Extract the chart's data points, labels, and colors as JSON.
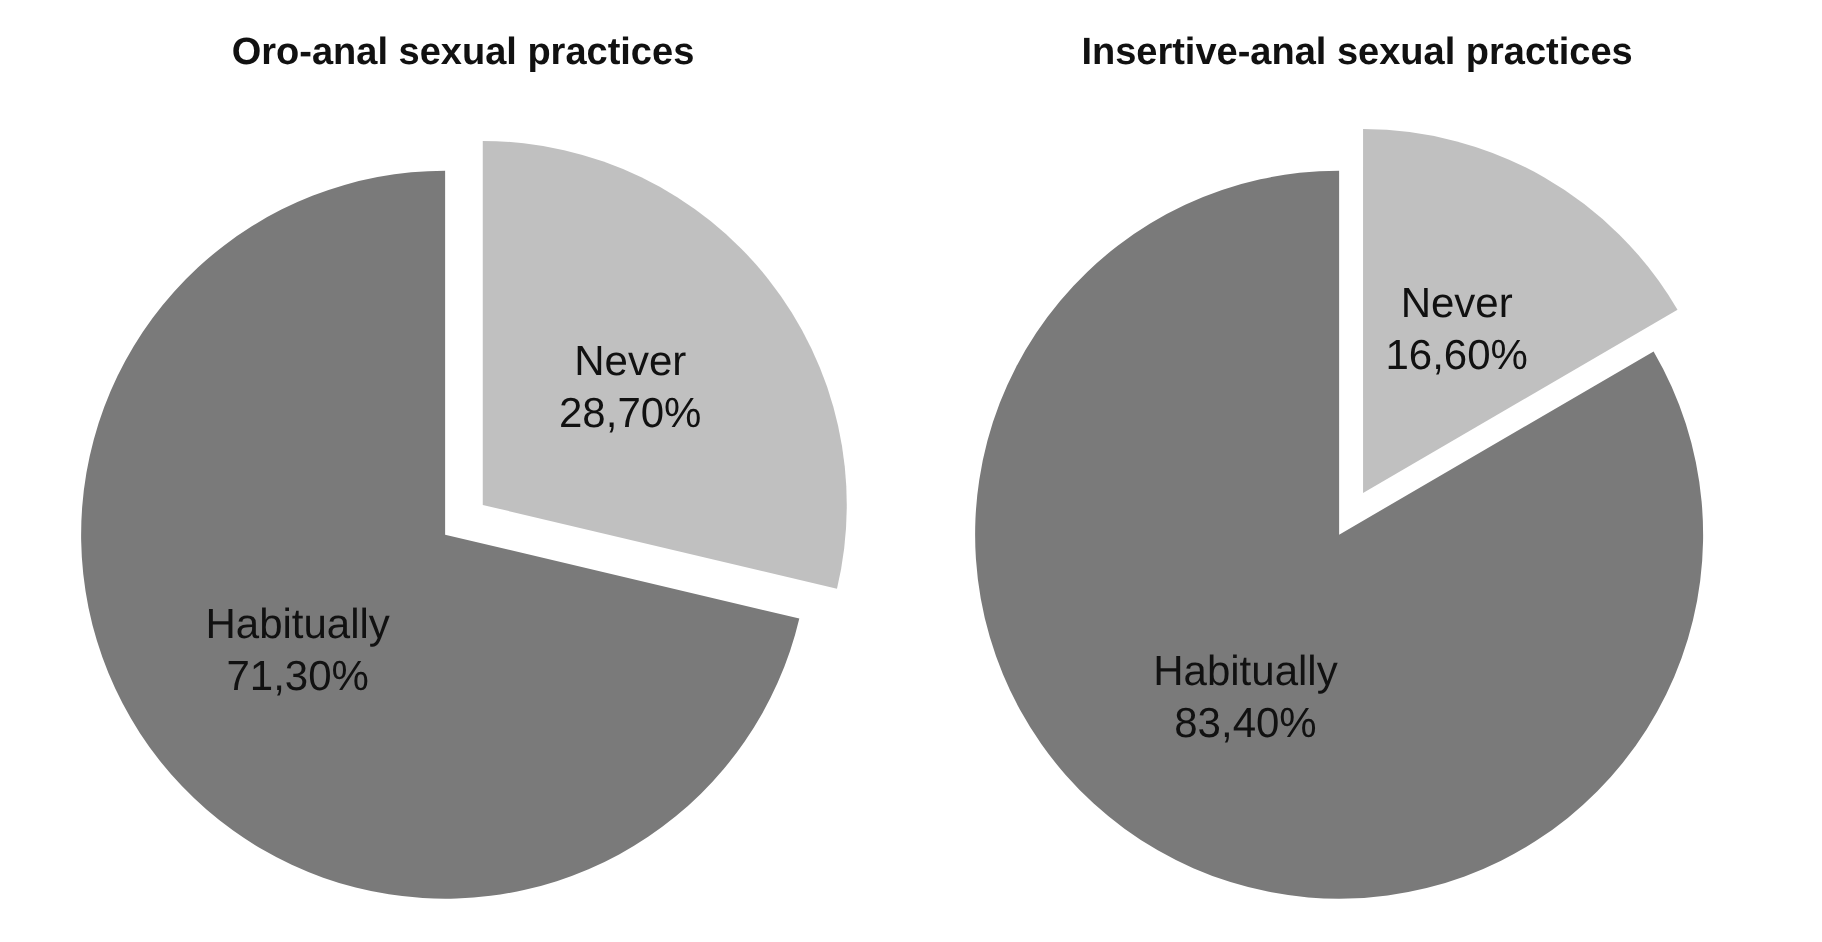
{
  "chart_data": [
    {
      "type": "pie",
      "title": "Oro-anal sexual practices",
      "categories": [
        "Never",
        "Habitually"
      ],
      "values": [
        28.7,
        71.3
      ],
      "colors": [
        "#c0c0c0",
        "#7a7a7a"
      ],
      "value_labels": [
        "28,70%",
        "71,30%"
      ]
    },
    {
      "type": "pie",
      "title": "Insertive-anal sexual practices",
      "categories": [
        "Never",
        "Habitually"
      ],
      "values": [
        16.6,
        83.4
      ],
      "colors": [
        "#c0c0c0",
        "#7a7a7a"
      ],
      "value_labels": [
        "16,60%",
        "83,40%"
      ]
    }
  ]
}
